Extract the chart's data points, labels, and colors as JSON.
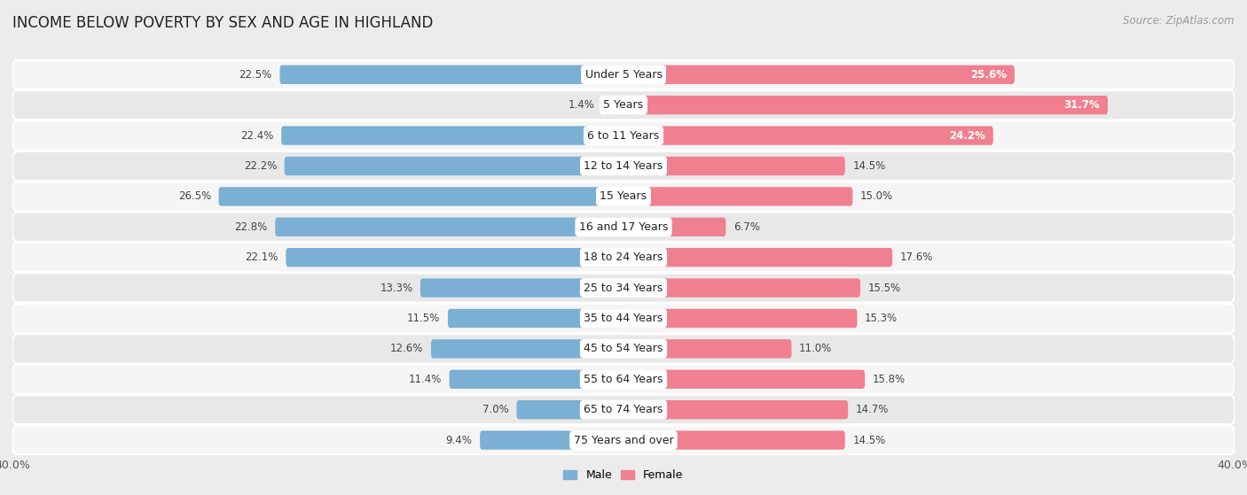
{
  "title": "INCOME BELOW POVERTY BY SEX AND AGE IN HIGHLAND",
  "source": "Source: ZipAtlas.com",
  "categories": [
    "Under 5 Years",
    "5 Years",
    "6 to 11 Years",
    "12 to 14 Years",
    "15 Years",
    "16 and 17 Years",
    "18 to 24 Years",
    "25 to 34 Years",
    "35 to 44 Years",
    "45 to 54 Years",
    "55 to 64 Years",
    "65 to 74 Years",
    "75 Years and over"
  ],
  "male_values": [
    22.5,
    1.4,
    22.4,
    22.2,
    26.5,
    22.8,
    22.1,
    13.3,
    11.5,
    12.6,
    11.4,
    7.0,
    9.4
  ],
  "female_values": [
    25.6,
    31.7,
    24.2,
    14.5,
    15.0,
    6.7,
    17.6,
    15.5,
    15.3,
    11.0,
    15.8,
    14.7,
    14.5
  ],
  "male_color": "#7bafd4",
  "female_color": "#f08090",
  "male_label": "Male",
  "female_label": "Female",
  "xlim": 40.0,
  "background_color": "#ececec",
  "row_bg_even": "#f5f5f5",
  "row_bg_odd": "#e8e8e8",
  "title_fontsize": 12,
  "source_fontsize": 8.5,
  "bar_height": 0.62,
  "label_fontsize": 8.5,
  "cat_fontsize": 9
}
